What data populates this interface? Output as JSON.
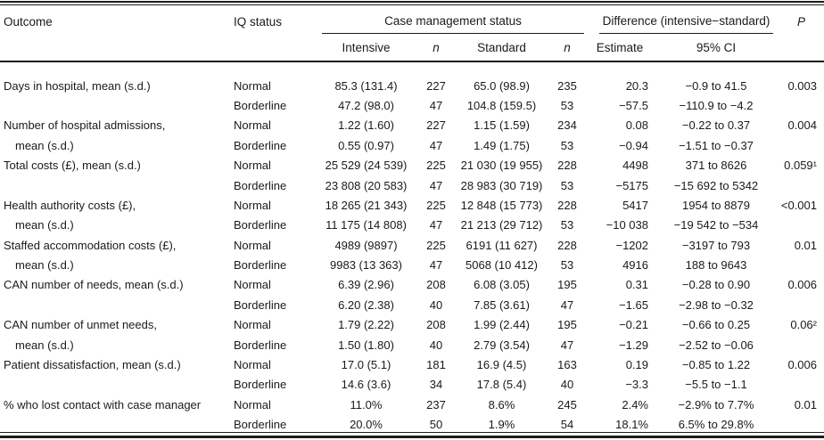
{
  "table": {
    "header": {
      "outcome": "Outcome",
      "iq_status": "IQ status",
      "case_management": "Case management status",
      "difference": "Difference (intensive−standard)",
      "p": "P",
      "intensive": "Intensive",
      "n1": "n",
      "standard": "Standard",
      "n2": "n",
      "estimate": "Estimate",
      "ci": "95% CI"
    },
    "rows": [
      {
        "outcome": "Days in hospital, mean (s.d.)",
        "indent": false,
        "iq": "Normal",
        "intensive": "85.3 (131.4)",
        "n1": "227",
        "standard": "65.0 (98.9)",
        "n2": "235",
        "estimate": "20.3",
        "ci": "−0.9 to 41.5",
        "p": "0.003"
      },
      {
        "outcome": "",
        "indent": false,
        "iq": "Borderline",
        "intensive": "47.2 (98.0)",
        "n1": "47",
        "standard": "104.8 (159.5)",
        "n2": "53",
        "estimate": "−57.5",
        "ci": "−110.9 to −4.2",
        "p": ""
      },
      {
        "outcome": "Number of hospital admissions,",
        "indent": false,
        "iq": "Normal",
        "intensive": "1.22 (1.60)",
        "n1": "227",
        "standard": "1.15 (1.59)",
        "n2": "234",
        "estimate": "0.08",
        "ci": "−0.22 to 0.37",
        "p": "0.004"
      },
      {
        "outcome": "mean (s.d.)",
        "indent": true,
        "iq": "Borderline",
        "intensive": "0.55 (0.97)",
        "n1": "47",
        "standard": "1.49 (1.75)",
        "n2": "53",
        "estimate": "−0.94",
        "ci": "−1.51 to −0.37",
        "p": ""
      },
      {
        "outcome": "Total costs (£), mean (s.d.)",
        "indent": false,
        "iq": "Normal",
        "intensive": "25 529 (24 539)",
        "n1": "225",
        "standard": "21 030 (19 955)",
        "n2": "228",
        "estimate": "4498",
        "ci": "371 to 8626",
        "p": "0.059¹"
      },
      {
        "outcome": "",
        "indent": false,
        "iq": "Borderline",
        "intensive": "23 808 (20 583)",
        "n1": "47",
        "standard": "28 983 (30 719)",
        "n2": "53",
        "estimate": "−5175",
        "ci": "−15 692 to 5342",
        "p": ""
      },
      {
        "outcome": "Health authority costs (£),",
        "indent": false,
        "iq": "Normal",
        "intensive": "18 265 (21 343)",
        "n1": "225",
        "standard": "12 848 (15 773)",
        "n2": "228",
        "estimate": "5417",
        "ci": "1954 to 8879",
        "p": "<0.001"
      },
      {
        "outcome": "mean (s.d.)",
        "indent": true,
        "iq": "Borderline",
        "intensive": "11 175 (14 808)",
        "n1": "47",
        "standard": "21 213 (29 712)",
        "n2": "53",
        "estimate": "−10 038",
        "ci": "−19 542 to −534",
        "p": ""
      },
      {
        "outcome": "Staffed accommodation costs (£),",
        "indent": false,
        "iq": "Normal",
        "intensive": "4989 (9897)",
        "n1": "225",
        "standard": "6191 (11 627)",
        "n2": "228",
        "estimate": "−1202",
        "ci": "−3197 to 793",
        "p": "0.01"
      },
      {
        "outcome": "mean (s.d.)",
        "indent": true,
        "iq": "Borderline",
        "intensive": "9983 (13 363)",
        "n1": "47",
        "standard": "5068 (10 412)",
        "n2": "53",
        "estimate": "4916",
        "ci": "188 to 9643",
        "p": ""
      },
      {
        "outcome": "CAN number of needs, mean (s.d.)",
        "indent": false,
        "iq": "Normal",
        "intensive": "6.39 (2.96)",
        "n1": "208",
        "standard": "6.08 (3.05)",
        "n2": "195",
        "estimate": "0.31",
        "ci": "−0.28 to 0.90",
        "p": "0.006"
      },
      {
        "outcome": "",
        "indent": false,
        "iq": "Borderline",
        "intensive": "6.20 (2.38)",
        "n1": "40",
        "standard": "7.85 (3.61)",
        "n2": "47",
        "estimate": "−1.65",
        "ci": "−2.98 to −0.32",
        "p": ""
      },
      {
        "outcome": "CAN number of unmet needs,",
        "indent": false,
        "iq": "Normal",
        "intensive": "1.79 (2.22)",
        "n1": "208",
        "standard": "1.99 (2.44)",
        "n2": "195",
        "estimate": "−0.21",
        "ci": "−0.66 to 0.25",
        "p": "0.06²"
      },
      {
        "outcome": "mean (s.d.)",
        "indent": true,
        "iq": "Borderline",
        "intensive": "1.50 (1.80)",
        "n1": "40",
        "standard": "2.79 (3.54)",
        "n2": "47",
        "estimate": "−1.29",
        "ci": "−2.52 to −0.06",
        "p": ""
      },
      {
        "outcome": "Patient dissatisfaction, mean (s.d.)",
        "indent": false,
        "iq": "Normal",
        "intensive": "17.0 (5.1)",
        "n1": "181",
        "standard": "16.9 (4.5)",
        "n2": "163",
        "estimate": "0.19",
        "ci": "−0.85 to 1.22",
        "p": "0.006"
      },
      {
        "outcome": "",
        "indent": false,
        "iq": "Borderline",
        "intensive": "14.6 (3.6)",
        "n1": "34",
        "standard": "17.8 (5.4)",
        "n2": "40",
        "estimate": "−3.3",
        "ci": "−5.5 to −1.1",
        "p": ""
      },
      {
        "outcome": "% who lost contact with case manager",
        "indent": false,
        "iq": "Normal",
        "intensive": "11.0%",
        "n1": "237",
        "standard": "8.6%",
        "n2": "245",
        "estimate": "2.4%",
        "ci": "−2.9% to 7.7%",
        "p": "0.01"
      },
      {
        "outcome": "",
        "indent": false,
        "iq": "Borderline",
        "intensive": "20.0%",
        "n1": "50",
        "standard": "1.9%",
        "n2": "54",
        "estimate": "18.1%",
        "ci": "6.5% to 29.8%",
        "p": ""
      }
    ]
  },
  "colors": {
    "text": "#1a1a1a",
    "rule": "#1c1c1c",
    "background": "#ffffff"
  }
}
